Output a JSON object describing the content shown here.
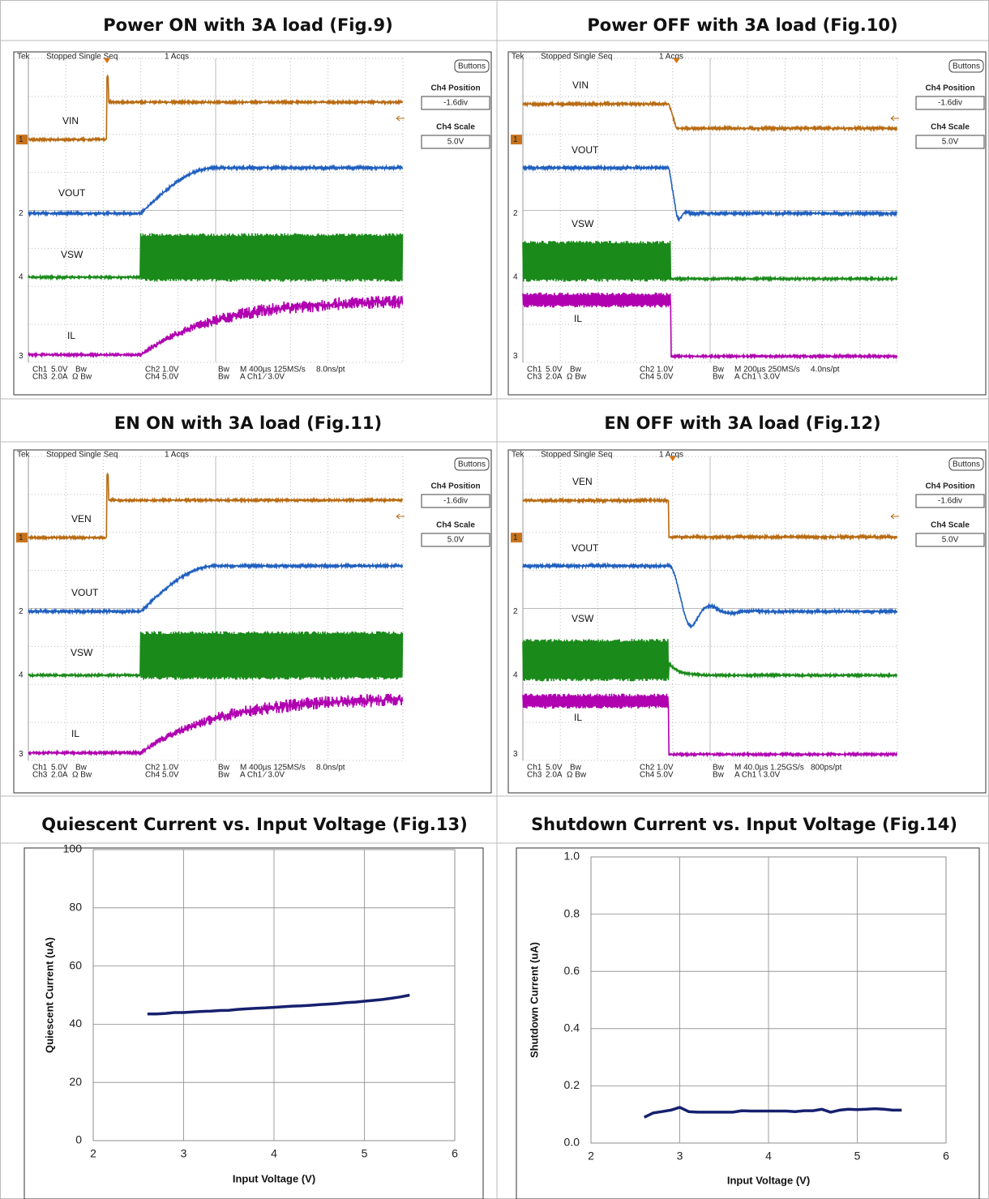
{
  "scopes": [
    {
      "title": "Power ON with 3A load (Fig.9)",
      "header": [
        "Tek",
        "Stopped Single Seq",
        "1 Acqs"
      ],
      "button": "Buttons",
      "panel": [
        "Ch4 Position",
        "-1.6div",
        "Ch4 Scale",
        "5.0V"
      ],
      "traces": [
        {
          "label": "VIN",
          "marker": "1",
          "color": "#b86b12"
        },
        {
          "label": "VOUT",
          "marker": "2",
          "color": "#1f5fbf"
        },
        {
          "label": "VSW",
          "marker": "4",
          "color": "#1a8a1a"
        },
        {
          "label": "IL",
          "marker": "3",
          "color": "#b000b0"
        }
      ],
      "readout": [
        [
          "Ch1",
          "5.0V",
          "Bw",
          "Ch2",
          "1.0V",
          "Bw",
          "M 400µs 125MS/s",
          "8.0ns/pt"
        ],
        [
          "Ch3",
          "2.0A",
          "Ω Bw",
          "Ch4",
          "5.0V",
          "Bw",
          "A Ch1 ⁄ 3.0V"
        ]
      ]
    },
    {
      "title": "Power OFF with 3A load (Fig.10)",
      "header": [
        "Tek",
        "Stopped Single Seq",
        "1 Acqs"
      ],
      "button": "Buttons",
      "panel": [
        "Ch4 Position",
        "-1.6div",
        "Ch4 Scale",
        "5.0V"
      ],
      "traces": [
        {
          "label": "VIN",
          "marker": "1",
          "color": "#b86b12"
        },
        {
          "label": "VOUT",
          "marker": "2",
          "color": "#1f5fbf"
        },
        {
          "label": "VSW",
          "marker": "4",
          "color": "#1a8a1a"
        },
        {
          "label": "IL",
          "marker": "3",
          "color": "#b000b0"
        }
      ],
      "readout": [
        [
          "Ch1",
          "5.0V",
          "Bw",
          "Ch2",
          "1.0V",
          "Bw",
          "M 200µs 250MS/s",
          "4.0ns/pt"
        ],
        [
          "Ch3",
          "2.0A",
          "Ω Bw",
          "Ch4",
          "5.0V",
          "Bw",
          "A Ch1 \\ 3.0V"
        ]
      ]
    },
    {
      "title": "EN ON with 3A load (Fig.11)",
      "header": [
        "Tek",
        "Stopped Single Seq",
        "1 Acqs"
      ],
      "button": "Buttons",
      "panel": [
        "Ch4 Position",
        "-1.6div",
        "Ch4 Scale",
        "5.0V"
      ],
      "traces": [
        {
          "label": "VEN",
          "marker": "1",
          "color": "#b86b12"
        },
        {
          "label": "VOUT",
          "marker": "2",
          "color": "#1f5fbf"
        },
        {
          "label": "VSW",
          "marker": "4",
          "color": "#1a8a1a"
        },
        {
          "label": "IL",
          "marker": "3",
          "color": "#b000b0"
        }
      ],
      "readout": [
        [
          "Ch1",
          "5.0V",
          "Bw",
          "Ch2",
          "1.0V",
          "Bw",
          "M 400µs 125MS/s",
          "8.0ns/pt"
        ],
        [
          "Ch3",
          "2.0A",
          "Ω Bw",
          "Ch4",
          "5.0V",
          "Bw",
          "A Ch1 ⁄ 3.0V"
        ]
      ]
    },
    {
      "title": "EN OFF with 3A load (Fig.12)",
      "header": [
        "Tek",
        "Stopped Single Seq",
        "1 Acqs"
      ],
      "button": "Buttons",
      "panel": [
        "Ch4 Position",
        "-1.6div",
        "Ch4 Scale",
        "5.0V"
      ],
      "traces": [
        {
          "label": "VEN",
          "marker": "1",
          "color": "#b86b12"
        },
        {
          "label": "VOUT",
          "marker": "2",
          "color": "#1f5fbf"
        },
        {
          "label": "VSW",
          "marker": "4",
          "color": "#1a8a1a"
        },
        {
          "label": "IL",
          "marker": "3",
          "color": "#b000b0"
        }
      ],
      "readout": [
        [
          "Ch1",
          "5.0V",
          "Bw",
          "Ch2",
          "1.0V",
          "Bw",
          "M 40.0µs 1.25GS/s",
          "800ps/pt"
        ],
        [
          "Ch3",
          "2.0A",
          "Ω Bw",
          "Ch4",
          "5.0V",
          "Bw",
          "A Ch1 \\ 3.0V"
        ]
      ]
    }
  ],
  "chart_data": [
    {
      "type": "line",
      "title": "Quiescent Current vs. Input Voltage (Fig.13)",
      "x_label": "Input Voltage  (V)",
      "y_label": "Quiescent Current (uA)",
      "x": [
        2.6,
        2.7,
        2.8,
        2.9,
        3.0,
        3.1,
        3.2,
        3.3,
        3.4,
        3.5,
        3.6,
        3.7,
        3.8,
        3.9,
        4.0,
        4.1,
        4.2,
        4.3,
        4.4,
        4.5,
        4.6,
        4.7,
        4.8,
        4.9,
        5.0,
        5.1,
        5.2,
        5.3,
        5.4,
        5.5
      ],
      "values": [
        43.5,
        43.5,
        43.7,
        44,
        44,
        44.2,
        44.4,
        44.5,
        44.7,
        44.8,
        45.1,
        45.3,
        45.5,
        45.6,
        45.8,
        46,
        46.2,
        46.3,
        46.5,
        46.7,
        46.9,
        47.1,
        47.4,
        47.6,
        47.9,
        48.2,
        48.5,
        48.9,
        49.4,
        50
      ],
      "color": "#16206e",
      "xlim": [
        2,
        6
      ],
      "xticks": [
        2,
        3,
        4,
        5,
        6
      ],
      "ylim": [
        0,
        100
      ],
      "yticks": [
        0,
        20,
        40,
        60,
        80,
        100
      ],
      "grid": true
    },
    {
      "type": "line",
      "title": "Shutdown Current vs. Input Voltage (Fig.14)",
      "x_label": "Input  Voltage (V)",
      "y_label": "Shutdown  Current  (uA)",
      "x": [
        2.6,
        2.7,
        2.8,
        2.9,
        3.0,
        3.1,
        3.2,
        3.3,
        3.4,
        3.5,
        3.6,
        3.7,
        3.8,
        3.9,
        4.0,
        4.1,
        4.2,
        4.3,
        4.4,
        4.5,
        4.6,
        4.7,
        4.8,
        4.9,
        5.0,
        5.1,
        5.2,
        5.3,
        5.4,
        5.5
      ],
      "values": [
        0.09,
        0.105,
        0.11,
        0.115,
        0.125,
        0.11,
        0.108,
        0.108,
        0.108,
        0.108,
        0.108,
        0.113,
        0.112,
        0.112,
        0.112,
        0.112,
        0.112,
        0.11,
        0.113,
        0.113,
        0.118,
        0.108,
        0.115,
        0.118,
        0.117,
        0.118,
        0.12,
        0.118,
        0.115,
        0.115
      ],
      "color": "#16206e",
      "xlim": [
        2,
        6
      ],
      "xticks": [
        2,
        3,
        4,
        5,
        6
      ],
      "ylim": [
        0,
        1
      ],
      "yticks": [
        {
          "value": 0,
          "label": "0.0"
        },
        {
          "value": 0.2,
          "label": "0.2"
        },
        {
          "value": 0.4,
          "label": "0.4"
        },
        {
          "value": 0.6,
          "label": "0.6"
        },
        {
          "value": 0.8,
          "label": "0.8"
        },
        {
          "value": 1,
          "label": "1.0"
        }
      ],
      "grid": true
    }
  ]
}
